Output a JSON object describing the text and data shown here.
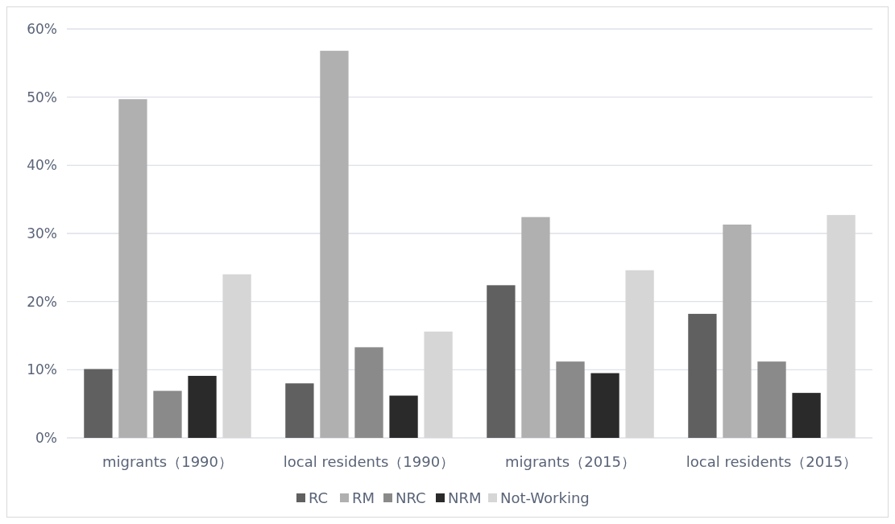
{
  "chart_data": {
    "type": "bar",
    "categories": [
      "migrants（1990）",
      "local residents（1990）",
      "migrants（2015）",
      "local residents（2015）"
    ],
    "series": [
      {
        "name": "RC",
        "color": "#606060",
        "values": [
          10.1,
          8.0,
          22.4,
          18.2
        ]
      },
      {
        "name": "RM",
        "color": "#b0b0b0",
        "values": [
          49.7,
          56.8,
          32.4,
          31.3
        ]
      },
      {
        "name": "NRC",
        "color": "#8a8a8a",
        "values": [
          6.9,
          13.3,
          11.2,
          11.2
        ]
      },
      {
        "name": "NRM",
        "color": "#2a2a2a",
        "values": [
          9.1,
          6.2,
          9.5,
          6.6
        ]
      },
      {
        "name": "Not-Working",
        "color": "#d6d6d6",
        "values": [
          24.0,
          15.6,
          24.6,
          32.7
        ]
      }
    ],
    "ylim": [
      0,
      60
    ],
    "yticks": [
      {
        "value": 0,
        "label": "0%"
      },
      {
        "value": 10,
        "label": "10%"
      },
      {
        "value": 20,
        "label": "20%"
      },
      {
        "value": 30,
        "label": "30%"
      },
      {
        "value": 40,
        "label": "40%"
      },
      {
        "value": 50,
        "label": "50%"
      },
      {
        "value": 60,
        "label": "60%"
      }
    ],
    "grid": "y",
    "legend": "bottom"
  }
}
